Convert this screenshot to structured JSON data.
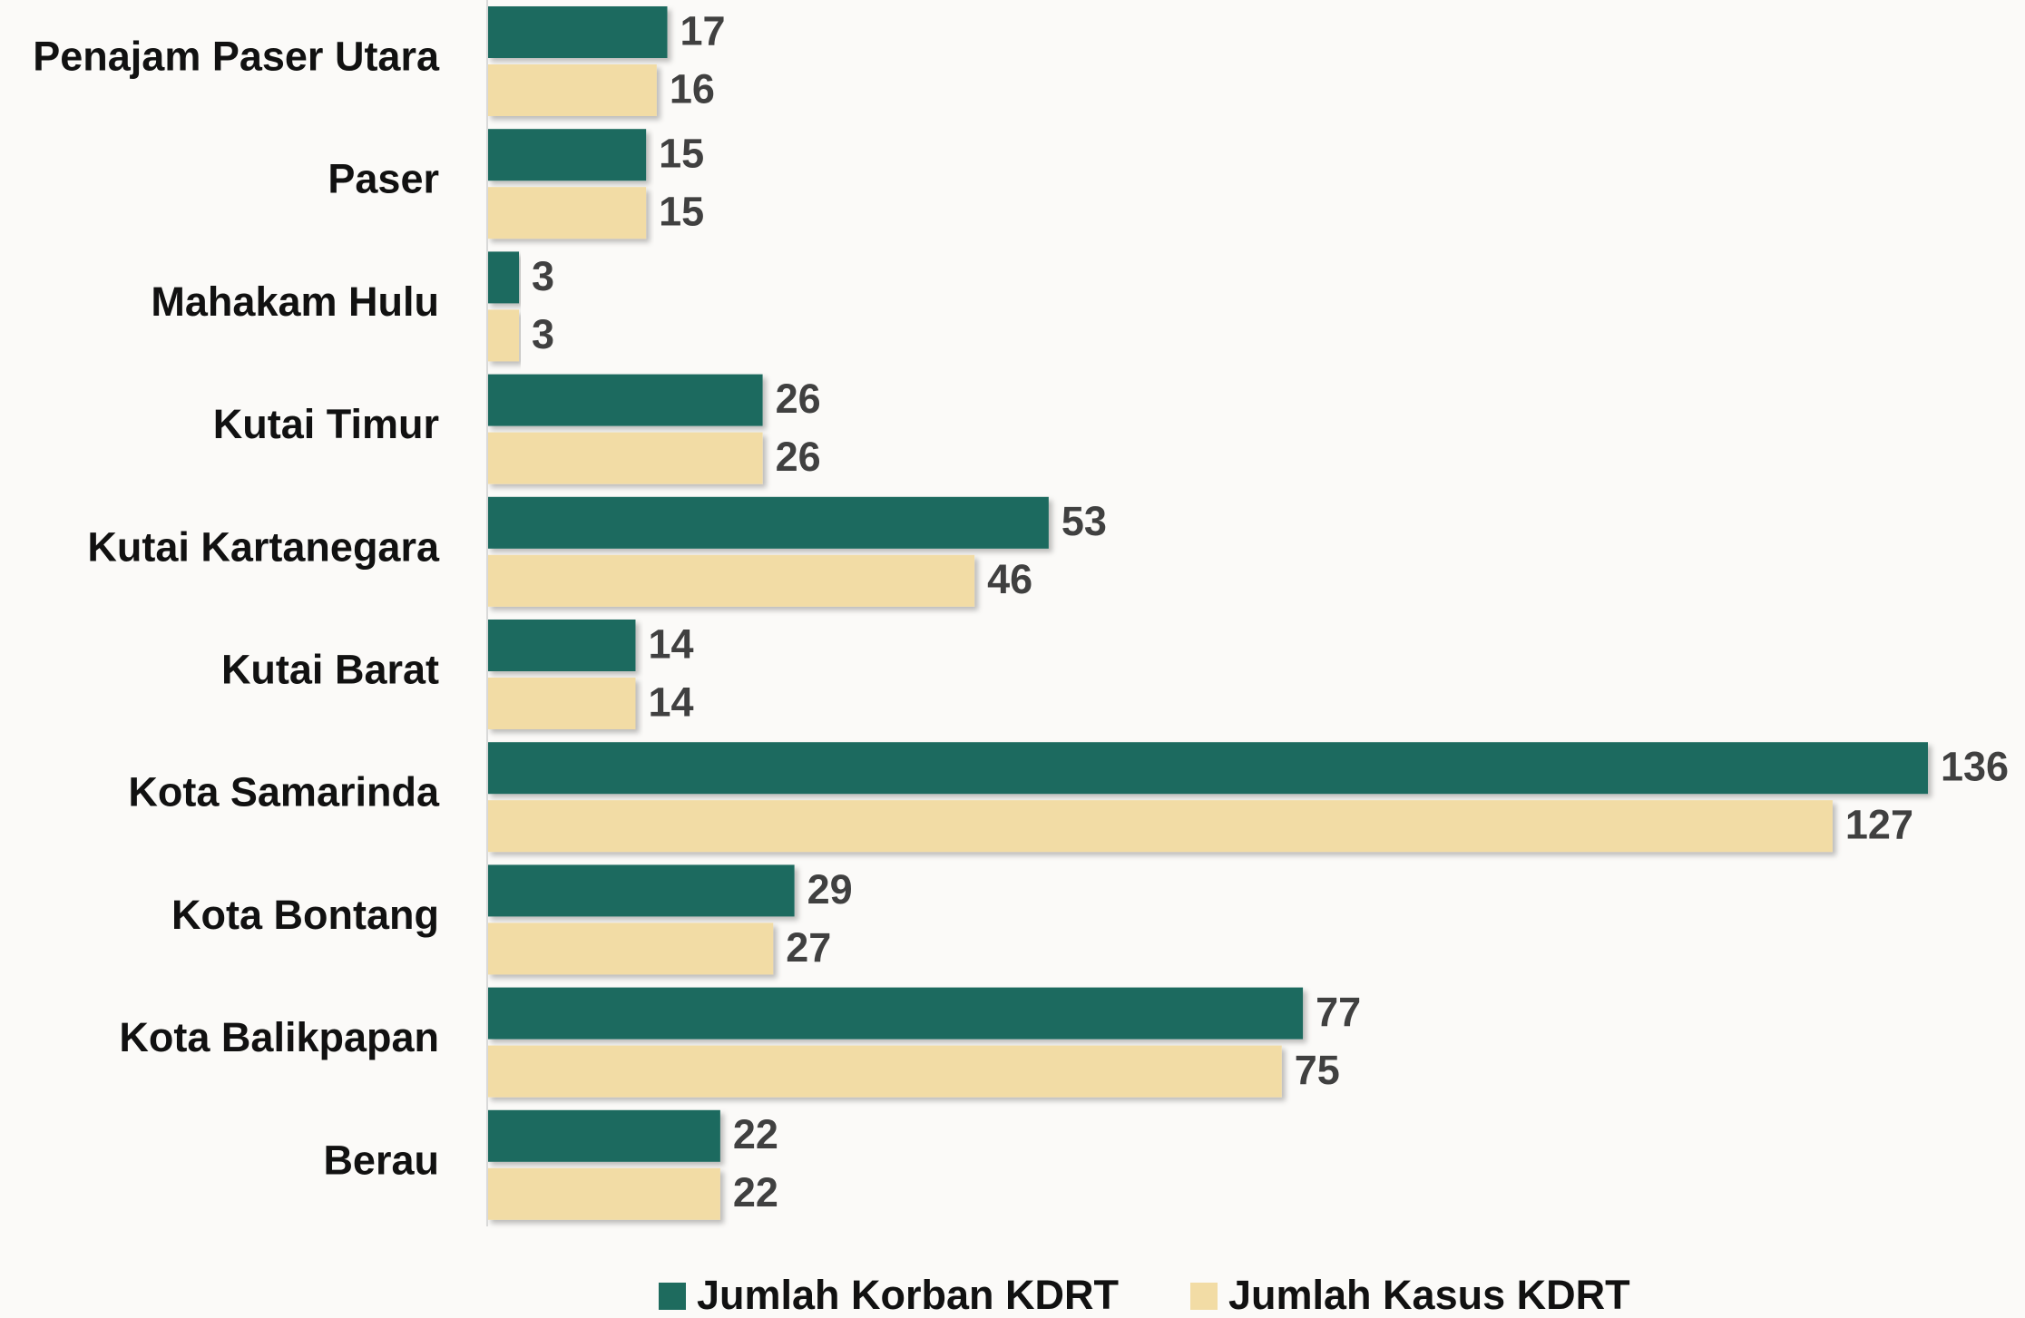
{
  "chart_data": {
    "type": "barh",
    "categories": [
      "Penajam Paser Utara",
      "Paser",
      "Mahakam Hulu",
      "Kutai Timur",
      "Kutai Kartanegara",
      "Kutai Barat",
      "Kota Samarinda",
      "Kota Bontang",
      "Kota Balikpapan",
      "Berau"
    ],
    "series": [
      {
        "name": "Jumlah Korban KDRT",
        "color": "#1e6b5e",
        "values": [
          17,
          15,
          3,
          26,
          53,
          14,
          136,
          29,
          77,
          22
        ]
      },
      {
        "name": "Jumlah Kasus KDRT",
        "color": "#f2dca5",
        "values": [
          16,
          15,
          3,
          26,
          46,
          14,
          127,
          27,
          75,
          22
        ]
      }
    ],
    "legend": "bottom"
  }
}
